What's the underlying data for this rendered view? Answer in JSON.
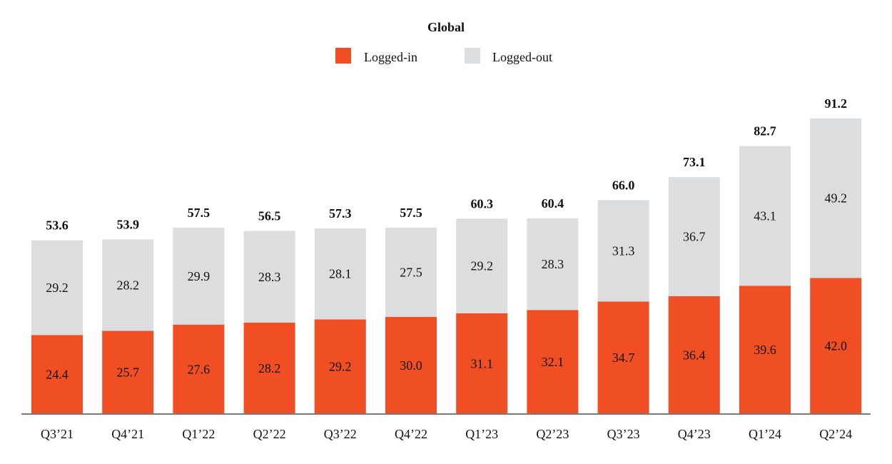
{
  "chart_data": {
    "type": "bar",
    "stacked": true,
    "title": "Global",
    "xlabel": "",
    "ylabel": "",
    "ylim": [
      0,
      95
    ],
    "grid": false,
    "legend_placement": "top-center",
    "categories": [
      "Q3’21",
      "Q4’21",
      "Q1’22",
      "Q2’22",
      "Q3’22",
      "Q4’22",
      "Q1’23",
      "Q2’23",
      "Q3’23",
      "Q4’23",
      "Q1’24",
      "Q2’24"
    ],
    "series": [
      {
        "name": "Logged-in",
        "color": "#f04f23",
        "values": [
          24.4,
          25.7,
          27.6,
          28.2,
          29.2,
          30.0,
          31.1,
          32.1,
          34.7,
          36.4,
          39.6,
          42.0
        ]
      },
      {
        "name": "Logged-out",
        "color": "#dcddde",
        "values": [
          29.2,
          28.2,
          29.9,
          28.3,
          28.1,
          27.5,
          29.2,
          28.3,
          31.3,
          36.7,
          43.1,
          49.2
        ]
      }
    ],
    "totals": [
      53.6,
      53.9,
      57.5,
      56.5,
      57.3,
      57.5,
      60.3,
      60.4,
      66.0,
      73.1,
      82.7,
      91.2
    ],
    "value_labels": {
      "Logged-in": [
        "24.4",
        "25.7",
        "27.6",
        "28.2",
        "29.2",
        "30.0",
        "31.1",
        "32.1",
        "34.7",
        "36.4",
        "39.6",
        "42.0"
      ],
      "Logged-out": [
        "29.2",
        "28.2",
        "29.9",
        "28.3",
        "28.1",
        "27.5",
        "29.2",
        "28.3",
        "31.3",
        "36.7",
        "43.1",
        "49.2"
      ],
      "totals": [
        "53.6",
        "53.9",
        "57.5",
        "56.5",
        "57.3",
        "57.5",
        "60.3",
        "60.4",
        "66.0",
        "73.1",
        "82.7",
        "91.2"
      ]
    },
    "axis_color": "#7a7a7a"
  }
}
